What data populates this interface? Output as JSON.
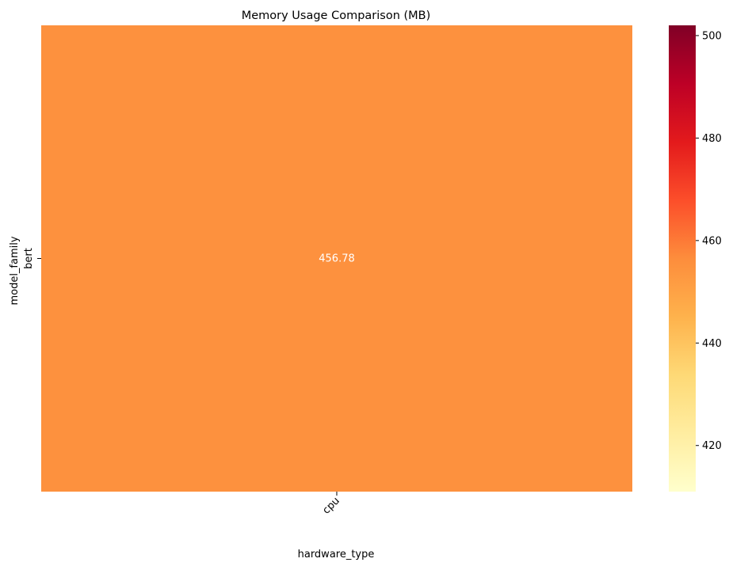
{
  "chart_data": {
    "type": "heatmap",
    "title": "Memory Usage Comparison (MB)",
    "xlabel": "hardware_type",
    "ylabel": "model_family",
    "x_categories": [
      "cpu"
    ],
    "y_categories": [
      "bert"
    ],
    "values": [
      [
        456.78
      ]
    ],
    "cell_labels": [
      [
        "456.78"
      ]
    ],
    "colormap": "YlOrRd",
    "colorbar": {
      "range": [
        411,
        502
      ],
      "ticks": [
        420,
        440,
        460,
        480,
        500
      ],
      "tick_labels": [
        "420",
        "440",
        "460",
        "480",
        "500"
      ]
    },
    "colors": {
      "cell": "#fd913e",
      "cell_text": "#ffffff",
      "colormap_stops": [
        "#ffffcc",
        "#ffeda0",
        "#fed976",
        "#feb24c",
        "#fd8d3c",
        "#fc4e2a",
        "#e31a1c",
        "#bd0026",
        "#800026"
      ]
    }
  }
}
